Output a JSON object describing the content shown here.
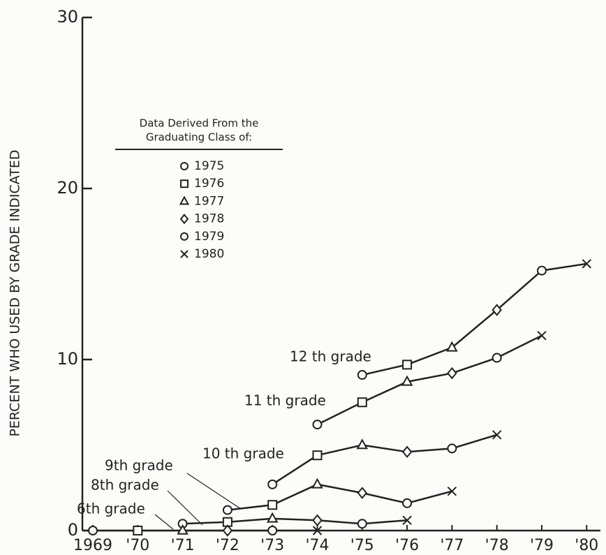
{
  "chart_data": {
    "type": "line",
    "y_label": "PERCENT WHO USED BY GRADE INDICATED",
    "categories": [
      "1969",
      "'70",
      "'71",
      "'72",
      "'73",
      "'74",
      "'75",
      "'76",
      "'77",
      "'78",
      "'79",
      "'80"
    ],
    "ylim": [
      0,
      30
    ],
    "yticks": [
      0,
      10,
      20,
      30
    ],
    "color": "#222222",
    "legend": {
      "title": [
        "Data Derived From the",
        "Graduating Class of:"
      ],
      "classes": [
        {
          "marker": "circle",
          "label": "1975"
        },
        {
          "marker": "square",
          "label": "1976"
        },
        {
          "marker": "triangle",
          "label": "1977"
        },
        {
          "marker": "diamond",
          "label": "1978"
        },
        {
          "marker": "circle",
          "label": "1979"
        },
        {
          "marker": "x",
          "label": "1980"
        }
      ]
    },
    "series": [
      {
        "name": "12 th grade",
        "values": [
          null,
          null,
          null,
          null,
          null,
          null,
          9.1,
          9.7,
          10.7,
          12.9,
          15.2,
          15.6
        ]
      },
      {
        "name": "11 th grade",
        "values": [
          null,
          null,
          null,
          null,
          null,
          6.2,
          7.5,
          8.7,
          9.2,
          10.1,
          11.4,
          null
        ]
      },
      {
        "name": "10 th grade",
        "values": [
          null,
          null,
          null,
          null,
          2.7,
          4.4,
          5.0,
          4.6,
          4.8,
          5.6,
          null,
          null
        ]
      },
      {
        "name": "9th grade",
        "values": [
          null,
          null,
          null,
          1.2,
          1.5,
          2.7,
          2.2,
          1.6,
          2.3,
          null,
          null,
          null
        ]
      },
      {
        "name": "8th grade",
        "values": [
          null,
          null,
          0.4,
          0.5,
          0.7,
          0.6,
          0.4,
          0.6,
          null,
          null,
          null,
          null
        ]
      },
      {
        "name": "6th grade",
        "values": [
          0,
          0,
          0,
          0,
          0,
          0,
          null,
          null,
          null,
          null,
          null,
          null
        ]
      }
    ]
  }
}
